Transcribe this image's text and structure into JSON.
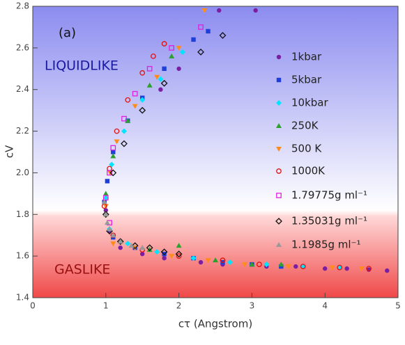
{
  "chart_data": {
    "type": "scatter",
    "x_label": "cτ (Angstrom)",
    "y_label": "cV",
    "annotations": [
      "(a)",
      "LIQUIDLIKE",
      "GASLIKE"
    ],
    "xlim": [
      0,
      5
    ],
    "xticks": [
      0,
      1,
      2,
      3,
      4,
      5
    ],
    "ylim": [
      1.4,
      2.8
    ],
    "yticks": [
      1.4,
      1.6,
      1.8,
      {
        "value": 2,
        "label": "2.0"
      },
      2.2,
      2.4,
      2.6,
      2.8
    ],
    "legend": "right",
    "series": [
      {
        "name": "1kbar",
        "color": "#7b1fa2",
        "marker": "circle",
        "open": false,
        "x": [
          1.0,
          1.05,
          1.2,
          1.5,
          1.8,
          1.75,
          2.0,
          2.55,
          3.05,
          2.3,
          2.6,
          3.2,
          3.6,
          4.0,
          4.3,
          4.6,
          4.85
        ],
        "y": [
          1.82,
          1.72,
          1.64,
          1.61,
          1.59,
          2.4,
          2.5,
          2.78,
          2.78,
          1.57,
          1.56,
          1.55,
          1.55,
          1.54,
          1.54,
          1.535,
          1.53
        ]
      },
      {
        "name": "5kbar",
        "color": "#1f3fd8",
        "marker": "square",
        "open": false,
        "x": [
          0.98,
          1.02,
          1.1,
          1.3,
          1.5,
          1.8,
          2.2,
          2.4,
          1.1,
          1.4,
          1.8,
          2.2,
          2.6,
          3.0,
          3.4
        ],
        "y": [
          1.86,
          1.96,
          2.1,
          2.25,
          2.36,
          2.5,
          2.64,
          2.68,
          1.69,
          1.64,
          1.61,
          1.59,
          1.57,
          1.56,
          1.55
        ]
      },
      {
        "name": "10kbar",
        "color": "#00e5ff",
        "marker": "diamond",
        "open": false,
        "x": [
          1.0,
          1.08,
          1.25,
          1.5,
          1.75,
          2.05,
          1.05,
          1.3,
          1.7,
          2.2,
          2.7,
          3.2,
          3.7,
          4.2
        ],
        "y": [
          1.88,
          2.04,
          2.2,
          2.35,
          2.45,
          2.58,
          1.73,
          1.66,
          1.62,
          1.59,
          1.57,
          1.56,
          1.55,
          1.545
        ]
      },
      {
        "name": "250K",
        "color": "#2ca02c",
        "marker": "triangle",
        "open": false,
        "x": [
          1.0,
          1.1,
          1.3,
          1.6,
          1.9,
          1.2,
          1.6,
          2.0,
          2.5,
          3.0,
          3.4
        ],
        "y": [
          1.9,
          2.08,
          2.25,
          2.42,
          2.56,
          1.67,
          1.63,
          1.65,
          1.58,
          1.56,
          1.56
        ]
      },
      {
        "name": "500 K",
        "color": "#ff8c1a",
        "marker": "triangle-down",
        "open": false,
        "x": [
          1.0,
          1.06,
          1.15,
          1.4,
          1.7,
          2.0,
          2.35,
          1.1,
          1.4,
          1.9,
          2.4,
          2.9,
          3.5,
          4.1,
          4.5
        ],
        "y": [
          1.84,
          2.0,
          2.15,
          2.32,
          2.46,
          2.6,
          2.78,
          1.66,
          1.64,
          1.6,
          1.58,
          1.56,
          1.55,
          1.545,
          1.54
        ]
      },
      {
        "name": "1000K",
        "color": "#e01010",
        "marker": "circle",
        "open": true,
        "x": [
          0.98,
          1.05,
          1.15,
          1.3,
          1.5,
          1.65,
          1.8,
          1.1,
          1.5,
          2.0,
          2.6,
          3.1,
          3.7,
          4.2,
          4.6
        ],
        "y": [
          1.84,
          2.02,
          2.2,
          2.35,
          2.48,
          2.56,
          2.62,
          1.7,
          1.63,
          1.6,
          1.58,
          1.56,
          1.55,
          1.545,
          1.54
        ]
      },
      {
        "name": "1.79775g ml⁻¹",
        "color": "#e020e0",
        "marker": "square",
        "open": true,
        "x": [
          1.0,
          1.05,
          1.1,
          1.25,
          1.4,
          1.6,
          1.9,
          2.3,
          1.05
        ],
        "y": [
          1.88,
          2.0,
          2.12,
          2.26,
          2.38,
          2.5,
          2.6,
          2.7,
          1.76
        ]
      },
      {
        "name": "1.35031g ml⁻¹",
        "color": "#111111",
        "marker": "diamond",
        "open": true,
        "x": [
          1.0,
          1.1,
          1.25,
          1.5,
          1.8,
          2.3,
          2.6,
          1.05,
          1.2,
          1.4,
          1.6,
          1.8,
          2.0
        ],
        "y": [
          1.8,
          2.0,
          2.14,
          2.3,
          2.43,
          2.58,
          2.66,
          1.72,
          1.67,
          1.65,
          1.64,
          1.62,
          1.61
        ]
      },
      {
        "name": "1.1985g ml⁻¹",
        "color": "#999999",
        "marker": "triangle",
        "open": false,
        "x": [
          0.98,
          1.0,
          1.02,
          1.05,
          1.1,
          1.2,
          1.35,
          1.5
        ],
        "y": [
          1.86,
          1.8,
          1.76,
          1.73,
          1.7,
          1.67,
          1.65,
          1.64
        ]
      }
    ]
  }
}
